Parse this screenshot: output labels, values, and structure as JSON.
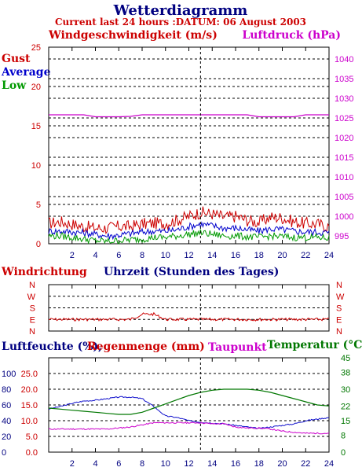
{
  "title": "Wetterdiagramm",
  "subtitle": "Current last 24 hours :DATUM: 06 August 2003",
  "colors": {
    "red": "#cc0000",
    "blue": "#1111cc",
    "green": "#007700",
    "magenta": "#cc00cc",
    "navy": "#000080",
    "gust": "#cc0000",
    "average": "#0000cc",
    "low": "#009900"
  },
  "panel1": {
    "left_title": "Windgeschwindigkeit (m/s)",
    "right_title": "Luftdruck (hPa)",
    "legend": [
      "Gust",
      "Average",
      "Low"
    ]
  },
  "panel2": {
    "left_title": "Windrichtung",
    "center_title": "Uhrzeit (Stunden des Tages)"
  },
  "panel3": {
    "title_humidity": "Luftfeuchte (%),",
    "title_rain": "Regenmenge (mm)",
    "title_dew": "Taupunkt",
    "title_temp": "Temperatur (°C)"
  },
  "chart_data": [
    {
      "type": "line",
      "title": "Windgeschwindigkeit (m/s)",
      "ylabel": "Windgeschwindigkeit (m/s)",
      "y2label": "Luftdruck (hPa)",
      "x": [
        0,
        1,
        2,
        3,
        4,
        5,
        6,
        7,
        8,
        9,
        10,
        11,
        12,
        13,
        14,
        15,
        16,
        17,
        18,
        19,
        20,
        21,
        22,
        23,
        24
      ],
      "xlim": [
        0,
        24
      ],
      "x_ticks": [
        "2",
        "4",
        "6",
        "8",
        "10",
        "12",
        "14",
        "16",
        "18",
        "20",
        "22",
        "24"
      ],
      "ylim": [
        0,
        25
      ],
      "y_ticks": [
        "0",
        "5",
        "10",
        "15",
        "20",
        "25"
      ],
      "y2lim": [
        993,
        1043
      ],
      "y2_ticks": [
        "995",
        "1000",
        "1005",
        "1010",
        "1015",
        "1020",
        "1025",
        "1030",
        "1035",
        "1040"
      ],
      "grid": true,
      "series": [
        {
          "name": "Gust",
          "axis": "left",
          "values": [
            2.6,
            2.8,
            2.5,
            2.2,
            2.0,
            2.0,
            2.2,
            2.2,
            2.5,
            2.6,
            2.6,
            3.0,
            3.5,
            4.0,
            3.8,
            3.4,
            3.5,
            3.0,
            2.7,
            3.4,
            3.3,
            2.8,
            2.6,
            2.5,
            2.2
          ]
        },
        {
          "name": "Average",
          "axis": "left",
          "values": [
            1.6,
            1.6,
            1.5,
            1.4,
            1.2,
            1.0,
            1.1,
            1.3,
            1.5,
            1.6,
            1.6,
            1.8,
            2.2,
            2.5,
            2.3,
            2.0,
            2.0,
            1.8,
            1.6,
            1.9,
            1.8,
            1.6,
            1.5,
            1.5,
            1.4
          ]
        },
        {
          "name": "Low",
          "axis": "left",
          "values": [
            1.0,
            1.0,
            0.8,
            0.6,
            0.4,
            0.3,
            0.4,
            0.5,
            0.6,
            0.8,
            0.8,
            1.0,
            1.2,
            1.4,
            1.2,
            1.0,
            1.0,
            0.9,
            0.8,
            1.0,
            0.9,
            0.8,
            0.8,
            0.8,
            0.7
          ]
        },
        {
          "name": "Luftdruck",
          "axis": "right",
          "values": [
            1025.8,
            1025.8,
            1025.8,
            1025.8,
            1025.3,
            1025.3,
            1025.3,
            1025.4,
            1025.8,
            1025.8,
            1025.8,
            1025.8,
            1025.8,
            1025.8,
            1025.8,
            1025.8,
            1025.8,
            1025.8,
            1025.3,
            1025.3,
            1025.3,
            1025.3,
            1025.8,
            1025.8,
            1025.8
          ]
        }
      ],
      "marker_x": 13
    },
    {
      "type": "line",
      "title": "Windrichtung",
      "xlim": [
        0,
        24
      ],
      "y_ticks": [
        "N",
        "W",
        "S",
        "E",
        "N"
      ],
      "grid": true,
      "series": [
        {
          "name": "Windrichtung",
          "values": [
            "E",
            "E",
            "E",
            "E",
            "E",
            "E",
            "E",
            "E",
            "SE",
            "SE",
            "E",
            "E",
            "E",
            "E",
            "E",
            "E",
            "E",
            "E",
            "E",
            "E",
            "E",
            "E",
            "E",
            "E",
            "E"
          ]
        }
      ],
      "marker_x": 13
    },
    {
      "type": "line",
      "title": "Luftfeuchte (%), Regenmenge (mm)",
      "y2label": "Temperatur (°C)",
      "xlim": [
        0,
        24
      ],
      "x_ticks": [
        "2",
        "4",
        "6",
        "8",
        "10",
        "12",
        "14",
        "16",
        "18",
        "20",
        "22",
        "24"
      ],
      "ylim_humidity": [
        0,
        120
      ],
      "y_ticks_humidity": [
        "0",
        "20",
        "40",
        "60",
        "80",
        "100"
      ],
      "y_ticks_rain": [
        "0.0",
        "5.0",
        "10.0",
        "15.0",
        "20.0",
        "25.0"
      ],
      "y2lim": [
        0,
        45
      ],
      "y2_ticks": [
        "0",
        "8",
        "15",
        "22",
        "30",
        "38",
        "45"
      ],
      "grid": true,
      "series": [
        {
          "name": "Luftfeuchte",
          "axis": "left",
          "values": [
            55,
            58,
            62,
            65,
            66,
            68,
            70,
            70,
            68,
            58,
            46,
            44,
            40,
            38,
            37,
            36,
            34,
            32,
            30,
            32,
            34,
            36,
            40,
            42,
            44
          ]
        },
        {
          "name": "Temperatur",
          "axis": "right",
          "values": [
            21,
            20.5,
            20,
            19.5,
            19,
            18.5,
            18,
            18,
            19,
            21,
            23,
            25,
            27,
            28.5,
            29.5,
            30,
            30,
            30,
            29.5,
            28.5,
            27,
            25.5,
            24,
            22.5,
            22
          ]
        },
        {
          "name": "Taupunkt",
          "axis": "right",
          "values": [
            11,
            11,
            11,
            11,
            11,
            11,
            11.5,
            12,
            13,
            14,
            14,
            14,
            14,
            14,
            13.5,
            13.5,
            12,
            11.5,
            11.5,
            11,
            10,
            9.5,
            9,
            9,
            9
          ]
        }
      ],
      "marker_x": 13
    }
  ]
}
